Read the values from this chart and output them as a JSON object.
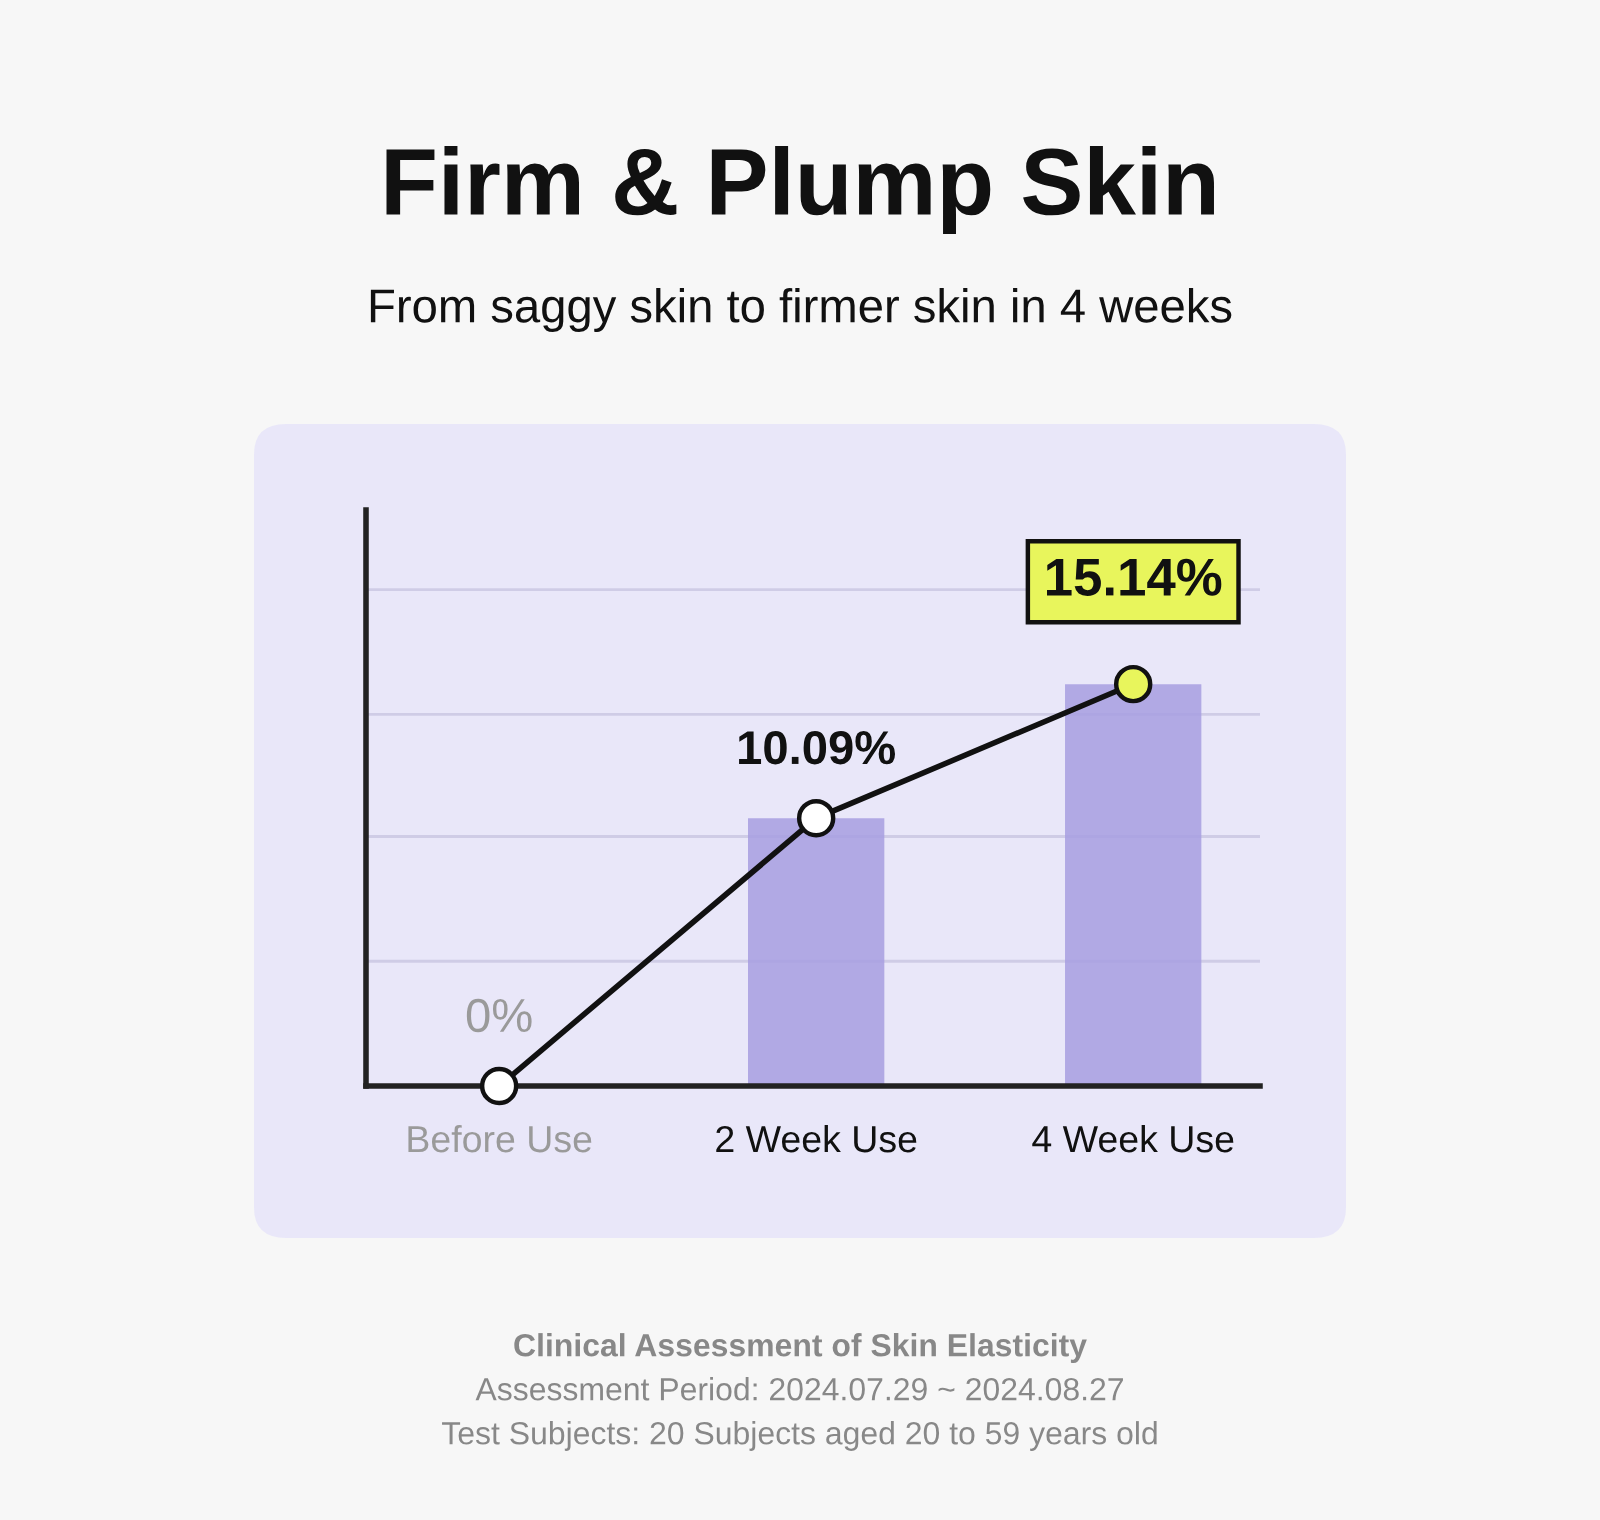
{
  "chart_data": {
    "type": "line",
    "title": "Firm & Plump Skin",
    "subtitle": "From saggy skin to firmer skin in 4 weeks",
    "categories": [
      "Before Use",
      "2 Week Use",
      "4 Week Use"
    ],
    "series": [
      {
        "type": "bar",
        "color": "#a79ee0",
        "values": [
          null,
          10.09,
          15.14
        ]
      },
      {
        "color": "#111111",
        "colors": [
          "#ffffff",
          "#ffffff",
          "#e8f55c"
        ],
        "values": [
          0,
          10.09,
          15.14
        ],
        "value_labels": [
          "0%",
          "10.09%",
          "15.14%"
        ]
      }
    ],
    "ylim": [
      0,
      21.7
    ],
    "yticks": [
      {
        "value": 4.7,
        "label": null
      },
      {
        "value": 9.4,
        "label": null
      },
      {
        "value": 14.0,
        "label": null
      },
      {
        "value": 18.7,
        "label": null
      }
    ],
    "tick_labels": "x",
    "grid": "y",
    "marker": "circle",
    "legend": false,
    "annotations": [
      "Clinical Assessment of Skin Elasticity",
      "Assessment Period: 2024.07.29 ~ 2024.08.27",
      "Test Subjects: 20 Subjects aged 20 to 59 years old"
    ]
  }
}
